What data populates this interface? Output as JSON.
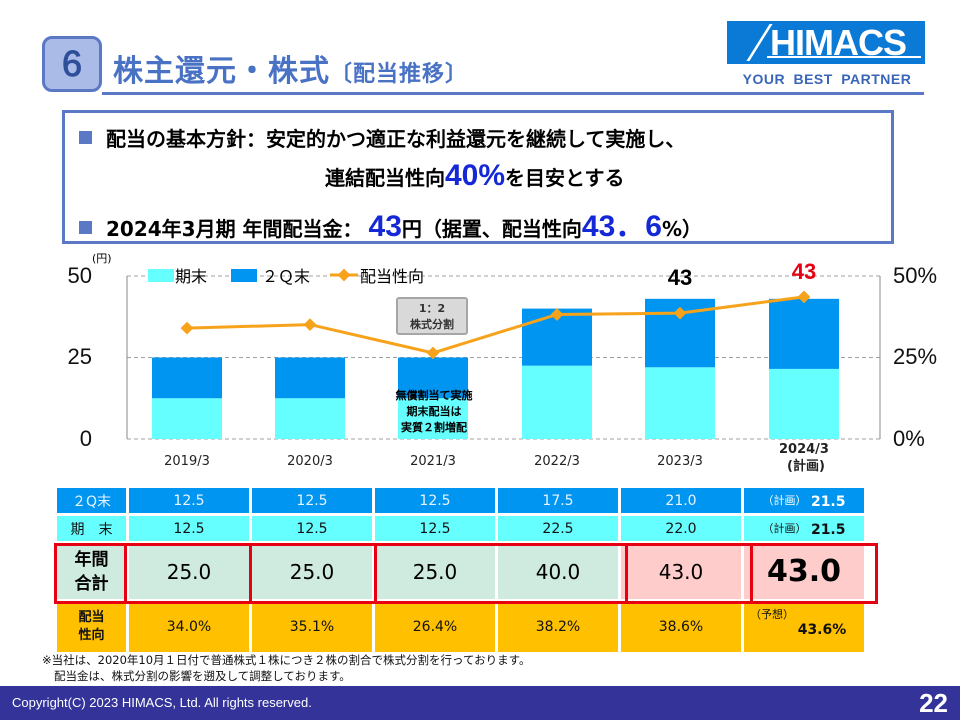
{
  "header": {
    "section_number": "6",
    "title": "株主還元・株式",
    "subtitle": "〔配当推移〕",
    "logo_text": "HIMACS",
    "logo_tagline": "YOUR  BEST  PARTNER"
  },
  "policy": {
    "line1_label": "配当の基本方針：",
    "line1_text": "安定的かつ適正な利益還元を継続して実施し、",
    "line2_pre": "連結配当性向",
    "line2_highlight": "40%",
    "line2_post": "を目安とする",
    "line3_label": "2024年3月期 年間配当金：",
    "line3_amount": "43",
    "line3_unit": "円（据置、配当性向",
    "line3_ratio": "43．6",
    "line3_end": "%）"
  },
  "colors": {
    "q2": "#0095f0",
    "yearend": "#66ffff",
    "payout_line": "#f7a21b",
    "highlight_red": "#e60012",
    "accent_blue": "#5a78c4"
  },
  "chart_data": {
    "type": "bar",
    "stacked": true,
    "categories": [
      "2019/3",
      "2020/3",
      "2021/3",
      "2022/3",
      "2023/3",
      "2024/3"
    ],
    "category_note_last": "(計画)",
    "y_unit": "(円)",
    "ylim": [
      0,
      50
    ],
    "yticks": [
      "0",
      "25",
      "50"
    ],
    "y2lim": [
      0,
      50
    ],
    "y2ticks": [
      "0%",
      "25%",
      "50%"
    ],
    "legend": [
      "期末",
      "２Ｑ末",
      "配当性向"
    ],
    "legend_position": "top-left",
    "series": [
      {
        "name": "期末",
        "values": [
          12.5,
          12.5,
          12.5,
          22.5,
          22.0,
          21.5
        ]
      },
      {
        "name": "２Ｑ末",
        "values": [
          12.5,
          12.5,
          12.5,
          17.5,
          21.0,
          21.5
        ]
      },
      {
        "name": "配当性向",
        "type": "line",
        "axis": "right",
        "values": [
          34.0,
          35.1,
          26.4,
          38.2,
          38.6,
          43.6
        ]
      }
    ],
    "total_labels": [
      "43",
      "43"
    ],
    "annotations": {
      "split_box_line1": "1：2",
      "split_box_line2": "株式分割",
      "note_line1": "無償割当て実施",
      "note_line2": "期末配当は",
      "note_line3": "実質２割増配"
    }
  },
  "table": {
    "row_q2_label": "２Q末",
    "row_end_label": "期　末",
    "row_total_label_1": "年間",
    "row_total_label_2": "合計",
    "row_payout_label_1": "配当",
    "row_payout_label_2": "性向",
    "plan_tag": "（計画）",
    "forecast_tag": "（予想）",
    "q2": [
      "12.5",
      "12.5",
      "12.5",
      "17.5",
      "21.0",
      "21.5"
    ],
    "yearend": [
      "12.5",
      "12.5",
      "12.5",
      "22.5",
      "22.0",
      "21.5"
    ],
    "total": [
      "25.0",
      "25.0",
      "25.0",
      "40.0",
      "43.0",
      "43.0"
    ],
    "payout": [
      "34.0%",
      "35.1%",
      "26.4%",
      "38.2%",
      "38.6%",
      "43.6%"
    ]
  },
  "footnote": {
    "line1": "※当社は、2020年10月１日付で普通株式１株につき２株の割合で株式分割を行っております。",
    "line2": "配当金は、株式分割の影響を遡及して調整しております。"
  },
  "footer": {
    "copyright": "Copyright(C) 2023 HIMACS,  Ltd. All rights reserved.",
    "page_number": "22"
  }
}
